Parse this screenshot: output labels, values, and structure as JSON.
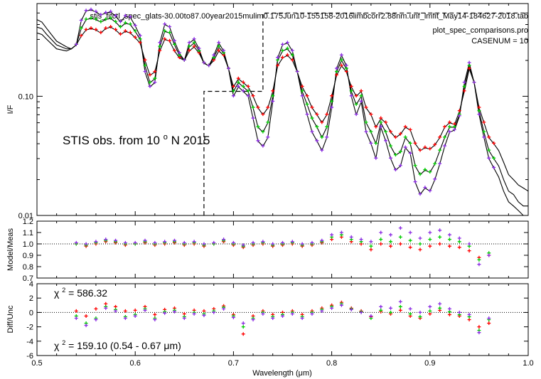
{
  "header": {
    "filename": "stis_fitctl_spec_glats-30.00to87.00year2015mulim0.175Jun10-155158-2016limbcorr2.88nm.unf_lmfit_May14-184627-2018.tab",
    "program": "plot_spec_comparisons.pro",
    "casenum": "CASENUM = 10"
  },
  "colors": {
    "black": "#000000",
    "red": "#ff0000",
    "green": "#00cc00",
    "purple": "#8a2be2",
    "blue": "#3355ff"
  },
  "chart_data": [
    {
      "type": "line",
      "panel": "spectrum",
      "ylabel": "I/F",
      "yscale": "log",
      "ylim": [
        0.01,
        0.6
      ],
      "xlim": [
        0.5,
        1.0
      ],
      "yticks": [
        0.01,
        0.1
      ],
      "ytick_labels": [
        "0.01",
        "0.10"
      ],
      "annotation": {
        "text": "STIS obs. from 10",
        "sup": "o",
        "rest": "N 2015"
      },
      "dashed_step": {
        "x": [
          0.67,
          0.67,
          0.7,
          0.7,
          0.73,
          0.73,
          1.0
        ],
        "y": [
          0.01,
          0.11,
          0.11,
          0.11,
          0.11,
          0.5,
          0.5
        ]
      },
      "x": [
        0.5,
        0.505,
        0.51,
        0.52,
        0.53,
        0.535,
        0.54,
        0.545,
        0.55,
        0.555,
        0.56,
        0.565,
        0.57,
        0.575,
        0.58,
        0.585,
        0.59,
        0.595,
        0.6,
        0.605,
        0.61,
        0.615,
        0.62,
        0.625,
        0.63,
        0.635,
        0.64,
        0.645,
        0.65,
        0.655,
        0.66,
        0.665,
        0.67,
        0.675,
        0.68,
        0.685,
        0.69,
        0.695,
        0.7,
        0.705,
        0.71,
        0.715,
        0.72,
        0.725,
        0.73,
        0.735,
        0.74,
        0.745,
        0.75,
        0.755,
        0.76,
        0.765,
        0.77,
        0.775,
        0.78,
        0.785,
        0.79,
        0.795,
        0.8,
        0.805,
        0.81,
        0.815,
        0.82,
        0.825,
        0.83,
        0.835,
        0.84,
        0.845,
        0.85,
        0.855,
        0.86,
        0.865,
        0.87,
        0.875,
        0.88,
        0.885,
        0.89,
        0.895,
        0.9,
        0.905,
        0.91,
        0.915,
        0.92,
        0.925,
        0.93,
        0.935,
        0.94,
        0.945,
        0.95,
        0.955,
        0.96,
        0.965,
        0.97,
        0.975,
        0.98,
        0.985,
        0.99,
        0.995,
        1.0
      ],
      "series": [
        {
          "role": "model-low",
          "color": "#ff0000",
          "marker": "plus",
          "values": [
            0.34,
            0.33,
            0.3,
            0.25,
            0.24,
            0.25,
            0.27,
            0.32,
            0.36,
            0.37,
            0.36,
            0.34,
            0.37,
            0.38,
            0.36,
            0.33,
            0.35,
            0.34,
            0.31,
            0.28,
            0.2,
            0.15,
            0.16,
            0.24,
            0.3,
            0.29,
            0.24,
            0.21,
            0.2,
            0.24,
            0.26,
            0.23,
            0.19,
            0.18,
            0.2,
            0.24,
            0.22,
            0.17,
            0.12,
            0.14,
            0.13,
            0.12,
            0.1,
            0.08,
            0.07,
            0.08,
            0.11,
            0.18,
            0.21,
            0.22,
            0.2,
            0.16,
            0.12,
            0.1,
            0.08,
            0.07,
            0.06,
            0.07,
            0.1,
            0.15,
            0.18,
            0.16,
            0.12,
            0.1,
            0.11,
            0.08,
            0.07,
            0.055,
            0.065,
            0.06,
            0.05,
            0.045,
            0.048,
            0.055,
            0.052,
            0.04,
            0.035,
            0.037,
            0.036,
            0.039,
            0.045,
            0.055,
            0.06,
            0.058,
            0.075,
            0.11,
            0.17,
            0.13,
            0.08,
            0.06,
            0.045,
            0.04,
            0.035,
            0.028,
            0.022,
            0.02,
            0.018,
            0.017,
            0.016
          ]
        },
        {
          "role": "model-mid",
          "color": "#00cc00",
          "marker": "plus",
          "values": [
            0.38,
            0.37,
            0.33,
            0.27,
            0.25,
            0.25,
            0.27,
            0.37,
            0.44,
            0.45,
            0.44,
            0.42,
            0.44,
            0.45,
            0.42,
            0.38,
            0.41,
            0.4,
            0.35,
            0.3,
            0.18,
            0.13,
            0.14,
            0.26,
            0.35,
            0.34,
            0.27,
            0.22,
            0.2,
            0.26,
            0.28,
            0.24,
            0.19,
            0.18,
            0.21,
            0.26,
            0.23,
            0.17,
            0.11,
            0.13,
            0.12,
            0.11,
            0.08,
            0.055,
            0.05,
            0.06,
            0.1,
            0.2,
            0.24,
            0.25,
            0.22,
            0.16,
            0.11,
            0.085,
            0.065,
            0.055,
            0.045,
            0.055,
            0.09,
            0.16,
            0.2,
            0.17,
            0.11,
            0.085,
            0.1,
            0.06,
            0.05,
            0.04,
            0.06,
            0.05,
            0.038,
            0.032,
            0.034,
            0.045,
            0.04,
            0.026,
            0.022,
            0.024,
            0.023,
            0.027,
            0.035,
            0.045,
            0.055,
            0.055,
            0.07,
            0.12,
            0.18,
            0.13,
            0.075,
            0.05,
            0.035,
            0.03,
            0.026,
            0.02,
            0.016,
            0.015,
            0.013,
            0.012,
            0.012
          ]
        },
        {
          "role": "model-high",
          "color": "#8a2be2",
          "marker": "plus",
          "values": [
            0.44,
            0.42,
            0.37,
            0.29,
            0.26,
            0.25,
            0.27,
            0.43,
            0.52,
            0.53,
            0.51,
            0.48,
            0.5,
            0.51,
            0.47,
            0.42,
            0.47,
            0.46,
            0.39,
            0.32,
            0.16,
            0.12,
            0.13,
            0.28,
            0.4,
            0.38,
            0.29,
            0.23,
            0.2,
            0.28,
            0.3,
            0.25,
            0.19,
            0.18,
            0.22,
            0.28,
            0.24,
            0.17,
            0.1,
            0.12,
            0.11,
            0.1,
            0.065,
            0.042,
            0.038,
            0.045,
            0.09,
            0.21,
            0.27,
            0.28,
            0.24,
            0.16,
            0.1,
            0.07,
            0.05,
            0.042,
            0.035,
            0.045,
            0.08,
            0.17,
            0.22,
            0.18,
            0.1,
            0.07,
            0.09,
            0.05,
            0.04,
            0.03,
            0.055,
            0.042,
            0.03,
            0.024,
            0.026,
            0.037,
            0.033,
            0.019,
            0.015,
            0.017,
            0.016,
            0.02,
            0.027,
            0.038,
            0.05,
            0.052,
            0.068,
            0.13,
            0.19,
            0.13,
            0.07,
            0.045,
            0.03,
            0.025,
            0.021,
            0.016,
            0.013,
            0.012,
            0.011,
            0.01,
            0.01
          ]
        }
      ]
    },
    {
      "type": "scatter",
      "panel": "ratio",
      "ylabel": "Model/Meas",
      "ylim": [
        0.7,
        1.2
      ],
      "yticks": [
        0.7,
        0.8,
        0.9,
        1.0,
        1.1,
        1.2
      ],
      "ytick_labels": [
        "0.7",
        "0.8",
        "0.9",
        "1.0",
        "1.1",
        "1.2"
      ],
      "reference_line": 1.0,
      "x": [
        0.54,
        0.55,
        0.56,
        0.57,
        0.58,
        0.59,
        0.6,
        0.61,
        0.62,
        0.63,
        0.64,
        0.65,
        0.66,
        0.67,
        0.68,
        0.69,
        0.7,
        0.71,
        0.72,
        0.73,
        0.74,
        0.75,
        0.76,
        0.77,
        0.78,
        0.79,
        0.8,
        0.81,
        0.82,
        0.83,
        0.84,
        0.85,
        0.86,
        0.87,
        0.88,
        0.89,
        0.9,
        0.91,
        0.92,
        0.93,
        0.94,
        0.95,
        0.96
      ],
      "series": [
        {
          "color": "#ff0000",
          "values": [
            1.0,
            0.98,
            1.0,
            1.02,
            1.01,
            0.99,
            1.0,
            1.01,
            0.99,
            1.0,
            1.01,
            0.99,
            1.0,
            0.98,
            1.0,
            1.02,
            0.99,
            0.97,
            0.99,
            1.0,
            0.98,
            0.99,
            1.0,
            0.98,
            0.99,
            1.01,
            1.04,
            1.06,
            1.02,
            1.0,
            0.95,
            1.0,
            0.98,
            1.0,
            0.97,
            0.95,
            0.98,
            1.0,
            0.98,
            0.97,
            0.94,
            0.88,
            0.9
          ]
        },
        {
          "color": "#00cc00",
          "values": [
            1.0,
            0.99,
            1.01,
            1.03,
            1.02,
            1.0,
            1.0,
            1.02,
            1.0,
            1.01,
            1.02,
            1.0,
            1.01,
            0.99,
            1.0,
            1.03,
            1.0,
            0.98,
            1.0,
            1.01,
            0.99,
            1.0,
            1.01,
            0.99,
            1.0,
            1.02,
            1.06,
            1.08,
            1.04,
            1.02,
            0.98,
            1.04,
            1.02,
            1.06,
            1.03,
            1.0,
            1.04,
            1.06,
            1.04,
            1.02,
            0.98,
            0.86,
            0.92
          ]
        },
        {
          "color": "#8a2be2",
          "values": [
            1.01,
            1.0,
            1.02,
            1.04,
            1.03,
            1.01,
            1.01,
            1.03,
            1.01,
            1.02,
            1.03,
            1.01,
            1.02,
            1.0,
            1.01,
            1.04,
            1.01,
            0.99,
            1.01,
            1.02,
            1.0,
            1.01,
            1.02,
            1.0,
            1.01,
            1.03,
            1.08,
            1.1,
            1.06,
            1.04,
            1.02,
            1.1,
            1.08,
            1.14,
            1.1,
            1.05,
            1.1,
            1.12,
            1.08,
            1.05,
            1.0,
            0.82,
            0.9
          ]
        }
      ]
    },
    {
      "type": "scatter",
      "panel": "residual",
      "ylabel": "Diff/Unc",
      "xlabel": "Wavelength (μm)",
      "xlim": [
        0.5,
        1.0
      ],
      "ylim": [
        -6,
        4
      ],
      "yticks": [
        -6,
        -4,
        -2,
        0,
        2,
        4
      ],
      "ytick_labels": [
        "-6",
        "-4",
        "-2",
        "0",
        "2",
        "4"
      ],
      "xticks": [
        0.5,
        0.6,
        0.7,
        0.8,
        0.9,
        1.0
      ],
      "xtick_labels": [
        "0.5",
        "0.6",
        "0.7",
        "0.8",
        "0.9",
        "1.0"
      ],
      "reference_line": 0,
      "chi2_total": {
        "symbol": "χ",
        "sup": "2",
        "text": " = 586.32"
      },
      "chi2_range": {
        "symbol": "χ",
        "sup": "2",
        "text": " = 159.10 (0.54 - 0.67 μm)"
      },
      "x": [
        0.54,
        0.55,
        0.56,
        0.57,
        0.58,
        0.59,
        0.6,
        0.61,
        0.62,
        0.63,
        0.64,
        0.65,
        0.66,
        0.67,
        0.68,
        0.69,
        0.7,
        0.71,
        0.72,
        0.73,
        0.74,
        0.75,
        0.76,
        0.77,
        0.78,
        0.79,
        0.8,
        0.81,
        0.82,
        0.83,
        0.84,
        0.85,
        0.86,
        0.87,
        0.88,
        0.89,
        0.9,
        0.91,
        0.92,
        0.93,
        0.94,
        0.95,
        0.96
      ],
      "series": [
        {
          "color": "#ff0000",
          "values": [
            0.2,
            -0.5,
            0.5,
            1.2,
            0.8,
            0.2,
            0.3,
            0.8,
            -0.3,
            0.4,
            0.6,
            -0.2,
            0.3,
            0.2,
            0.5,
            0.9,
            -0.3,
            -3.0,
            -0.5,
            0.2,
            -0.3,
            0.0,
            0.2,
            -0.3,
            0.2,
            0.6,
            1.0,
            1.4,
            0.6,
            0.2,
            -0.6,
            0.1,
            -0.2,
            0.3,
            -0.5,
            -0.8,
            -0.2,
            0.3,
            -0.3,
            -0.5,
            -1.0,
            -2.0,
            -1.5
          ]
        },
        {
          "color": "#00cc00",
          "values": [
            -0.5,
            -1.5,
            -0.8,
            0.8,
            0.4,
            -0.6,
            -0.3,
            0.5,
            -0.8,
            0.1,
            0.3,
            -0.6,
            0.0,
            -0.2,
            0.2,
            0.7,
            -0.5,
            -2.0,
            -0.8,
            0.0,
            -0.6,
            -0.3,
            0.0,
            -0.6,
            0.0,
            0.4,
            0.8,
            1.2,
            0.5,
            0.1,
            -0.8,
            0.3,
            0.0,
            0.8,
            -0.2,
            -0.6,
            0.2,
            0.6,
            0.1,
            -0.3,
            -0.6,
            -2.5,
            -1.0
          ]
        },
        {
          "color": "#8a2be2",
          "values": [
            -0.8,
            -1.8,
            -1.0,
            0.6,
            0.2,
            -0.8,
            -0.5,
            0.3,
            -1.0,
            -0.1,
            0.1,
            -0.8,
            -0.2,
            -0.4,
            0.0,
            0.5,
            -0.7,
            -1.5,
            -1.0,
            -0.2,
            -0.8,
            -0.5,
            -0.2,
            -0.8,
            -0.2,
            0.2,
            0.6,
            1.0,
            0.4,
            0.0,
            -0.5,
            0.8,
            0.6,
            1.5,
            0.5,
            0.0,
            0.8,
            1.2,
            0.5,
            0.0,
            -0.3,
            -2.8,
            -0.8
          ]
        }
      ]
    }
  ]
}
